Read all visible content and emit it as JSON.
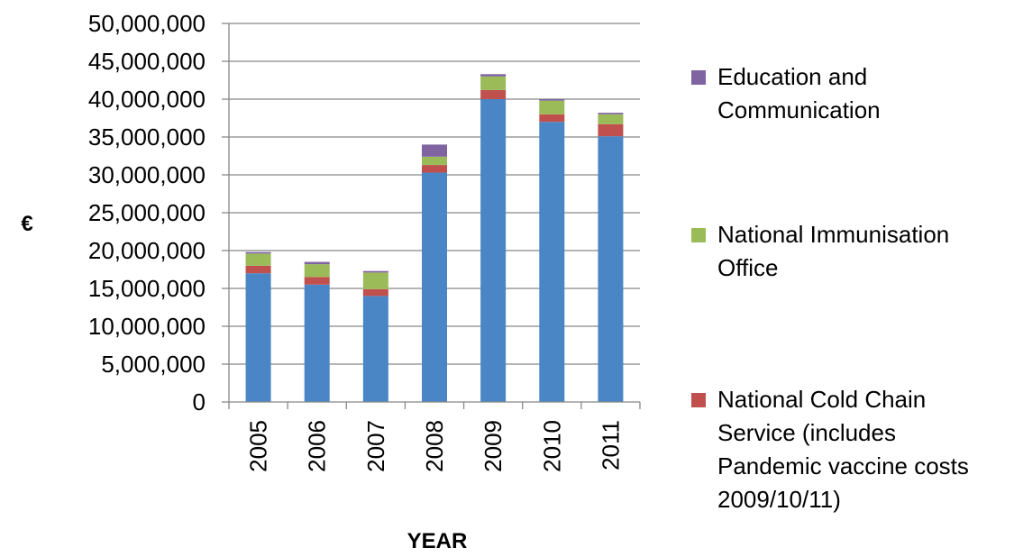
{
  "chart_data": {
    "type": "bar",
    "stacked": true,
    "categories": [
      "2005",
      "2006",
      "2007",
      "2008",
      "2009",
      "2010",
      "2011"
    ],
    "xlabel": "YEAR",
    "ylabel": "€",
    "ylim": [
      0,
      50000000
    ],
    "yticks": [
      0,
      5000000,
      10000000,
      15000000,
      20000000,
      25000000,
      30000000,
      35000000,
      40000000,
      45000000,
      50000000
    ],
    "ytick_labels": [
      "0",
      "5,000,000",
      "10,000,000",
      "15,000,000",
      "20,000,000",
      "25,000,000",
      "30,000,000",
      "35,000,000",
      "40,000,000",
      "45,000,000",
      "50,000,000"
    ],
    "grid": true,
    "legend_position": "right",
    "series": [
      {
        "key": "base",
        "color": "#4a86c6",
        "values": [
          17000000,
          15500000,
          14000000,
          30300000,
          40000000,
          37000000,
          35100000
        ]
      },
      {
        "key": "cold_chain",
        "name": "National Cold Chain Service (includes Pandemic vaccine costs 2009/10/11)",
        "color": "#c0504d",
        "values": [
          1000000,
          1000000,
          900000,
          1000000,
          1200000,
          1000000,
          1600000
        ]
      },
      {
        "key": "immunisation",
        "name": "National Immunisation Office",
        "color": "#9bbb59",
        "values": [
          1600000,
          1700000,
          2200000,
          1100000,
          1800000,
          1800000,
          1300000
        ]
      },
      {
        "key": "education",
        "name": "Education and Communication",
        "color": "#8064a2",
        "values": [
          200000,
          300000,
          200000,
          1600000,
          300000,
          200000,
          200000
        ]
      }
    ],
    "legend": [
      {
        "key": "education",
        "lines": [
          "Education and",
          "Communication"
        ]
      },
      {
        "key": "immunisation",
        "lines": [
          "National Immunisation",
          "Office"
        ]
      },
      {
        "key": "cold_chain",
        "lines": [
          "National Cold Chain",
          "Service (includes",
          "Pandemic vaccine costs",
          "2009/10/11)"
        ]
      }
    ]
  }
}
